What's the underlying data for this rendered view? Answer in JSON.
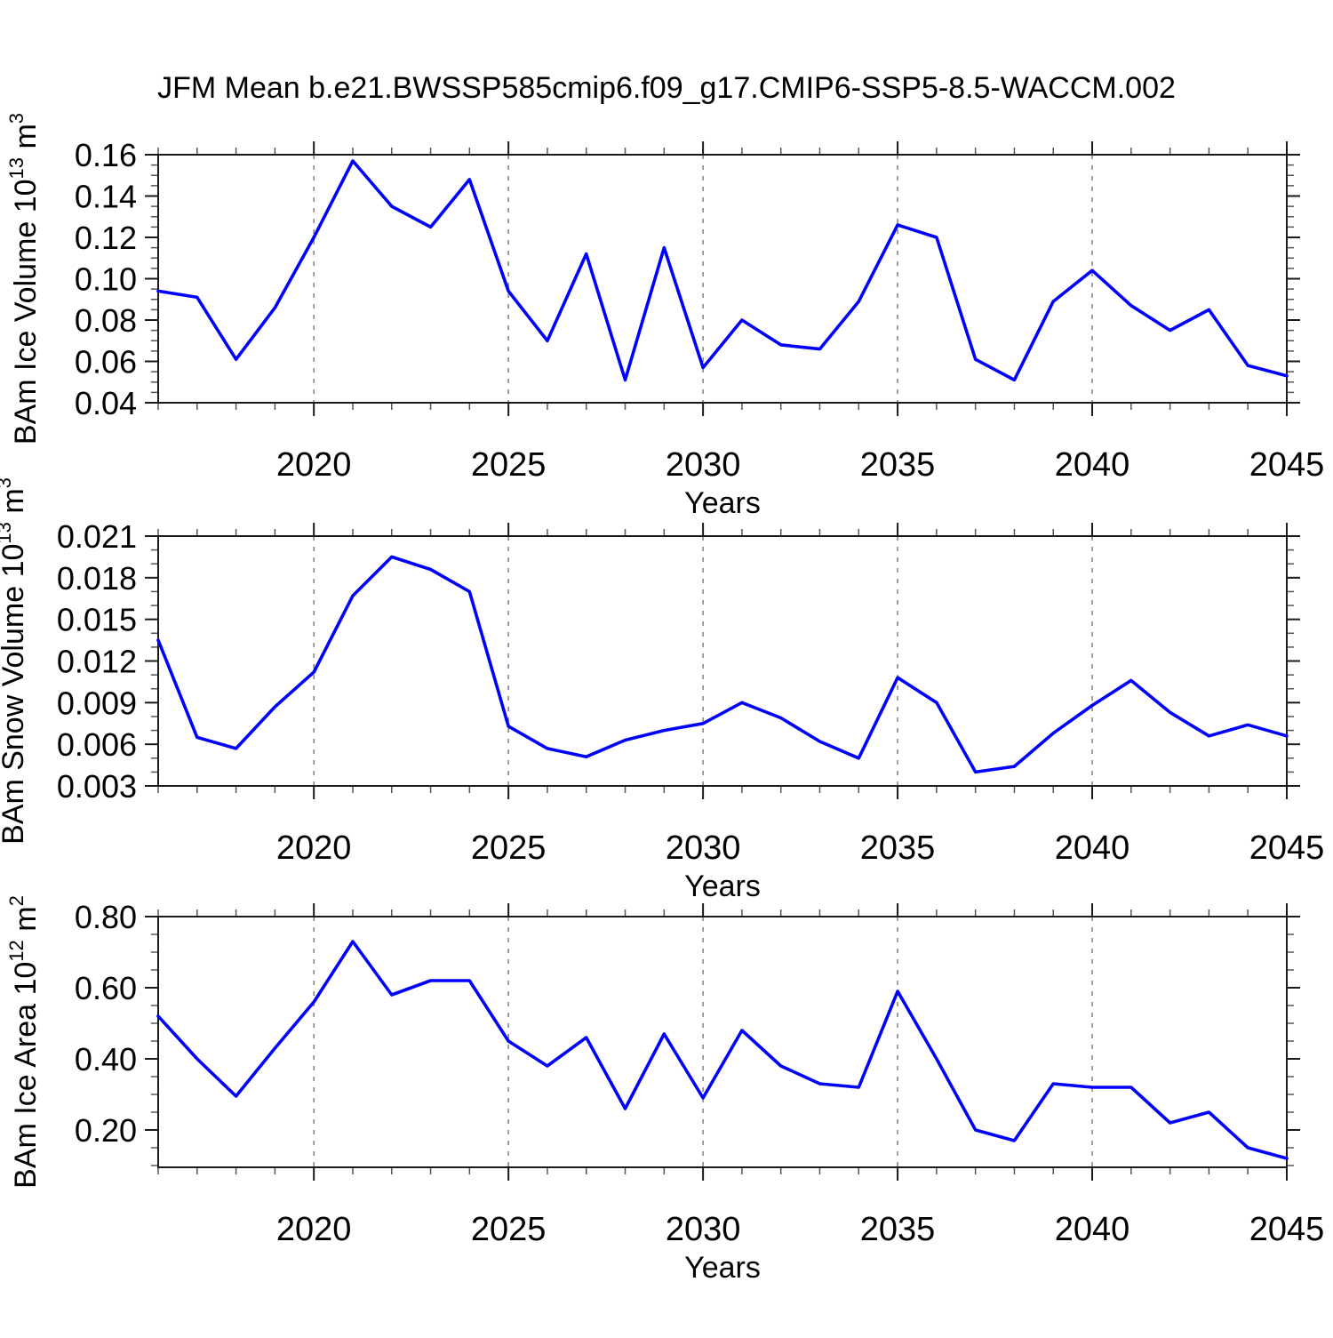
{
  "title": "JFM Mean b.e21.BWSSP585cmip6.f09_g17.CMIP6-SSP5-8.5-WACCM.002",
  "colors": {
    "line": "#0000ff",
    "frame": "#1a1a1a",
    "minor_tick": "#555555",
    "grid": "#808080",
    "text": "#000000"
  },
  "chart_data": [
    {
      "type": "line",
      "name": "bam-ice-volume",
      "ylabel_text": "BAm Ice Volume 10^13 m^3",
      "ylabel_segments": [
        {
          "t": "BAm Ice Volume 10"
        },
        {
          "sup": "13"
        },
        {
          "t": " m"
        },
        {
          "sup": "3"
        }
      ],
      "xlabel": "Years",
      "x": [
        2016,
        2017,
        2018,
        2019,
        2020,
        2021,
        2022,
        2023,
        2024,
        2025,
        2026,
        2027,
        2028,
        2029,
        2030,
        2031,
        2032,
        2033,
        2034,
        2035,
        2036,
        2037,
        2038,
        2039,
        2040,
        2041,
        2042,
        2043,
        2044,
        2045
      ],
      "y": [
        0.094,
        0.091,
        0.061,
        0.086,
        0.12,
        0.157,
        0.135,
        0.125,
        0.148,
        0.094,
        0.07,
        0.112,
        0.051,
        0.115,
        0.057,
        0.08,
        0.068,
        0.066,
        0.089,
        0.126,
        0.12,
        0.061,
        0.051,
        0.089,
        0.104,
        0.087,
        0.075,
        0.085,
        0.058,
        0.053
      ],
      "ylim": [
        0.04,
        0.16
      ],
      "yticks": [
        0.04,
        0.06,
        0.08,
        0.1,
        0.12,
        0.14,
        0.16
      ],
      "ytick_decimals": 2,
      "y_minor_step": 0.005,
      "xticks": [
        2020,
        2025,
        2030,
        2035,
        2040,
        2045
      ],
      "grid_years": [
        2020,
        2025,
        2030,
        2035,
        2040
      ],
      "legend": "none",
      "grid": "vertical-dashed"
    },
    {
      "type": "line",
      "name": "bam-snow-volume",
      "ylabel_text": "BAm Snow Volume 10^13 m^3",
      "ylabel_segments": [
        {
          "t": "BAm Snow Volume 10"
        },
        {
          "sup": "13"
        },
        {
          "t": " m"
        },
        {
          "sup": "3"
        }
      ],
      "xlabel": "Years",
      "x": [
        2016,
        2017,
        2018,
        2019,
        2020,
        2021,
        2022,
        2023,
        2024,
        2025,
        2026,
        2027,
        2028,
        2029,
        2030,
        2031,
        2032,
        2033,
        2034,
        2035,
        2036,
        2037,
        2038,
        2039,
        2040,
        2041,
        2042,
        2043,
        2044,
        2045
      ],
      "y": [
        0.0135,
        0.0065,
        0.0057,
        0.0087,
        0.0112,
        0.0167,
        0.0195,
        0.0186,
        0.017,
        0.0073,
        0.0057,
        0.0051,
        0.0063,
        0.007,
        0.0075,
        0.009,
        0.0079,
        0.0062,
        0.005,
        0.0108,
        0.009,
        0.004,
        0.0044,
        0.0068,
        0.0088,
        0.0106,
        0.0083,
        0.0066,
        0.0074,
        0.0066
      ],
      "ylim": [
        0.003,
        0.021
      ],
      "yticks": [
        0.003,
        0.006,
        0.009,
        0.012,
        0.015,
        0.018,
        0.021
      ],
      "ytick_decimals": 3,
      "y_minor_step": 0.001,
      "xticks": [
        2020,
        2025,
        2030,
        2035,
        2040,
        2045
      ],
      "grid_years": [
        2020,
        2025,
        2030,
        2035,
        2040
      ],
      "legend": "none",
      "grid": "vertical-dashed"
    },
    {
      "type": "line",
      "name": "bam-ice-area",
      "ylabel_text": "BAm Ice Area 10^12 m^2",
      "ylabel_segments": [
        {
          "t": "BAm Ice Area 10"
        },
        {
          "sup": "12"
        },
        {
          "t": " m"
        },
        {
          "sup": "2"
        }
      ],
      "xlabel": "Years",
      "x": [
        2016,
        2017,
        2018,
        2019,
        2020,
        2021,
        2022,
        2023,
        2024,
        2025,
        2026,
        2027,
        2028,
        2029,
        2030,
        2031,
        2032,
        2033,
        2034,
        2035,
        2036,
        2037,
        2038,
        2039,
        2040,
        2041,
        2042,
        2043,
        2044,
        2045
      ],
      "y": [
        0.52,
        0.4,
        0.295,
        0.43,
        0.56,
        0.73,
        0.58,
        0.62,
        0.62,
        0.45,
        0.38,
        0.46,
        0.26,
        0.47,
        0.29,
        0.48,
        0.38,
        0.33,
        0.32,
        0.59,
        0.4,
        0.2,
        0.17,
        0.33,
        0.32,
        0.32,
        0.22,
        0.25,
        0.15,
        0.12
      ],
      "ylim": [
        0.095,
        0.8
      ],
      "yticks": [
        0.2,
        0.4,
        0.6,
        0.8
      ],
      "ytick_decimals": 2,
      "y_minor_step": 0.05,
      "xticks": [
        2020,
        2025,
        2030,
        2035,
        2040,
        2045
      ],
      "grid_years": [
        2020,
        2025,
        2030,
        2035,
        2040
      ],
      "legend": "none",
      "grid": "vertical-dashed"
    }
  ]
}
